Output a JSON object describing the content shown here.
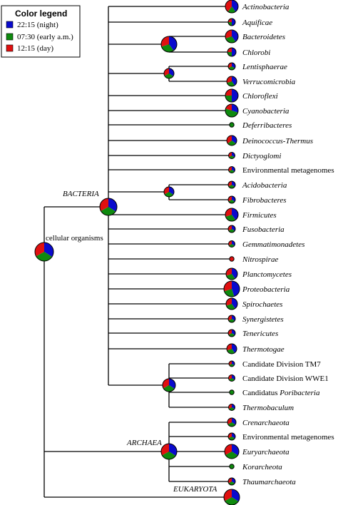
{
  "legend": {
    "title": "Color legend",
    "items": [
      {
        "label": "22:15 (night)",
        "color": "#0a0acd"
      },
      {
        "label": "07:30 (early a.m.)",
        "color": "#0e8a0e"
      },
      {
        "label": "12:15 (day)",
        "color": "#e01010"
      }
    ]
  },
  "colors": {
    "night": "#0a0acd",
    "early": "#0e8a0e",
    "day": "#e01010"
  },
  "tree": {
    "root": {
      "label": "cellular organisms"
    },
    "bacteria": {
      "label": "BACTERIA"
    },
    "archaea": {
      "label": "ARCHAEA"
    },
    "eukaryota": {
      "label": "EUKARYOTA"
    },
    "bacteria_leaves": [
      {
        "label": "Actinobacteria",
        "italic": true,
        "fractions": [
          0.4,
          0.2,
          0.4
        ]
      },
      {
        "label": "Aquificae",
        "italic": true,
        "fractions": [
          0.5,
          0.25,
          0.25
        ]
      },
      {
        "label": "Bacteroidetes",
        "italic": true,
        "fractions": [
          0.4,
          0.3,
          0.3
        ]
      },
      {
        "label": "Chlorobi",
        "italic": true,
        "fractions": [
          0.5,
          0.25,
          0.25
        ]
      },
      {
        "label": "Lentisphaerae",
        "italic": true,
        "fractions": [
          0.34,
          0.33,
          0.33
        ]
      },
      {
        "label": "Verrucomicrobia",
        "italic": true,
        "fractions": [
          0.4,
          0.3,
          0.3
        ]
      },
      {
        "label": "Chloroflexi",
        "italic": true,
        "fractions": [
          0.5,
          0.25,
          0.25
        ]
      },
      {
        "label": "Cyanobacteria",
        "italic": true,
        "fractions": [
          0.3,
          0.5,
          0.2
        ]
      },
      {
        "label": "Deferribacteres",
        "italic": true,
        "fractions": [
          0.0,
          1.0,
          0.0
        ]
      },
      {
        "label": "Deinococcus-Thermus",
        "italic": true,
        "fractions": [
          0.35,
          0.3,
          0.35
        ]
      },
      {
        "label": "Dictyoglomi",
        "italic": true,
        "fractions": [
          0.34,
          0.33,
          0.33
        ]
      },
      {
        "label": "Environmental metagenomes",
        "italic": false,
        "fractions": [
          0.34,
          0.33,
          0.33
        ]
      },
      {
        "label": "Acidobacteria",
        "italic": true,
        "fractions": [
          0.34,
          0.33,
          0.33
        ]
      },
      {
        "label": "Fibrobacteres",
        "italic": true,
        "fractions": [
          0.34,
          0.33,
          0.33
        ]
      },
      {
        "label": "Firmicutes",
        "italic": true,
        "fractions": [
          0.4,
          0.3,
          0.3
        ]
      },
      {
        "label": "Fusobacteria",
        "italic": true,
        "fractions": [
          0.34,
          0.33,
          0.33
        ]
      },
      {
        "label": "Gemmatimonadetes",
        "italic": true,
        "fractions": [
          0.34,
          0.33,
          0.33
        ]
      },
      {
        "label": "Nitrospirae",
        "italic": true,
        "fractions": [
          0.0,
          0.0,
          1.0
        ]
      },
      {
        "label": "Planctomycetes",
        "italic": true,
        "fractions": [
          0.4,
          0.3,
          0.3
        ]
      },
      {
        "label": "Proteobacteria",
        "italic": true,
        "fractions": [
          0.45,
          0.25,
          0.3
        ]
      },
      {
        "label": "Spirochaetes",
        "italic": true,
        "fractions": [
          0.4,
          0.3,
          0.3
        ]
      },
      {
        "label": "Synergistetes",
        "italic": true,
        "fractions": [
          0.34,
          0.33,
          0.33
        ]
      },
      {
        "label": "Tenericutes",
        "italic": true,
        "fractions": [
          0.34,
          0.33,
          0.33
        ]
      },
      {
        "label": "Thermotogae",
        "italic": true,
        "fractions": [
          0.4,
          0.3,
          0.3
        ]
      },
      {
        "label": "Candidate Division TM7",
        "italic": false,
        "fractions": [
          0.34,
          0.33,
          0.33
        ]
      },
      {
        "label": "Candidate Division WWE1",
        "italic": false,
        "fractions": [
          0.34,
          0.33,
          0.33
        ]
      },
      {
        "label": "Candidatus Poribacteria",
        "italic": false,
        "italic_part": "Poribacteria",
        "fractions": [
          0.0,
          1.0,
          0.0
        ]
      },
      {
        "label": "Thermobaculum",
        "italic": true,
        "fractions": [
          0.34,
          0.33,
          0.33
        ]
      }
    ],
    "archaea_leaves": [
      {
        "label": "Crenarchaeota",
        "italic": true,
        "fractions": [
          0.34,
          0.33,
          0.33
        ]
      },
      {
        "label": "Environmental metagenomes",
        "italic": false,
        "fractions": [
          0.34,
          0.33,
          0.33
        ]
      },
      {
        "label": "Euryarchaeota",
        "italic": true,
        "fractions": [
          0.34,
          0.33,
          0.33
        ]
      },
      {
        "label": "Korarcheota",
        "italic": true,
        "fractions": [
          0.0,
          1.0,
          0.0
        ]
      },
      {
        "label": "Thaumarchaeota",
        "italic": true,
        "fractions": [
          0.34,
          0.33,
          0.33
        ]
      }
    ],
    "internal_fractions": {
      "root": [
        0.34,
        0.33,
        0.33
      ],
      "bacteria": [
        0.34,
        0.33,
        0.33
      ],
      "bacteroidetes_chlorobi": [
        0.4,
        0.3,
        0.3
      ],
      "lentisphaerae_verrucomicrobia": [
        0.34,
        0.33,
        0.33
      ],
      "acidobacteria_fibrobacteres": [
        0.34,
        0.33,
        0.33
      ],
      "candidate_group": [
        0.34,
        0.33,
        0.33
      ],
      "archaea": [
        0.34,
        0.33,
        0.33
      ],
      "eukaryota": [
        0.34,
        0.33,
        0.33
      ]
    }
  }
}
